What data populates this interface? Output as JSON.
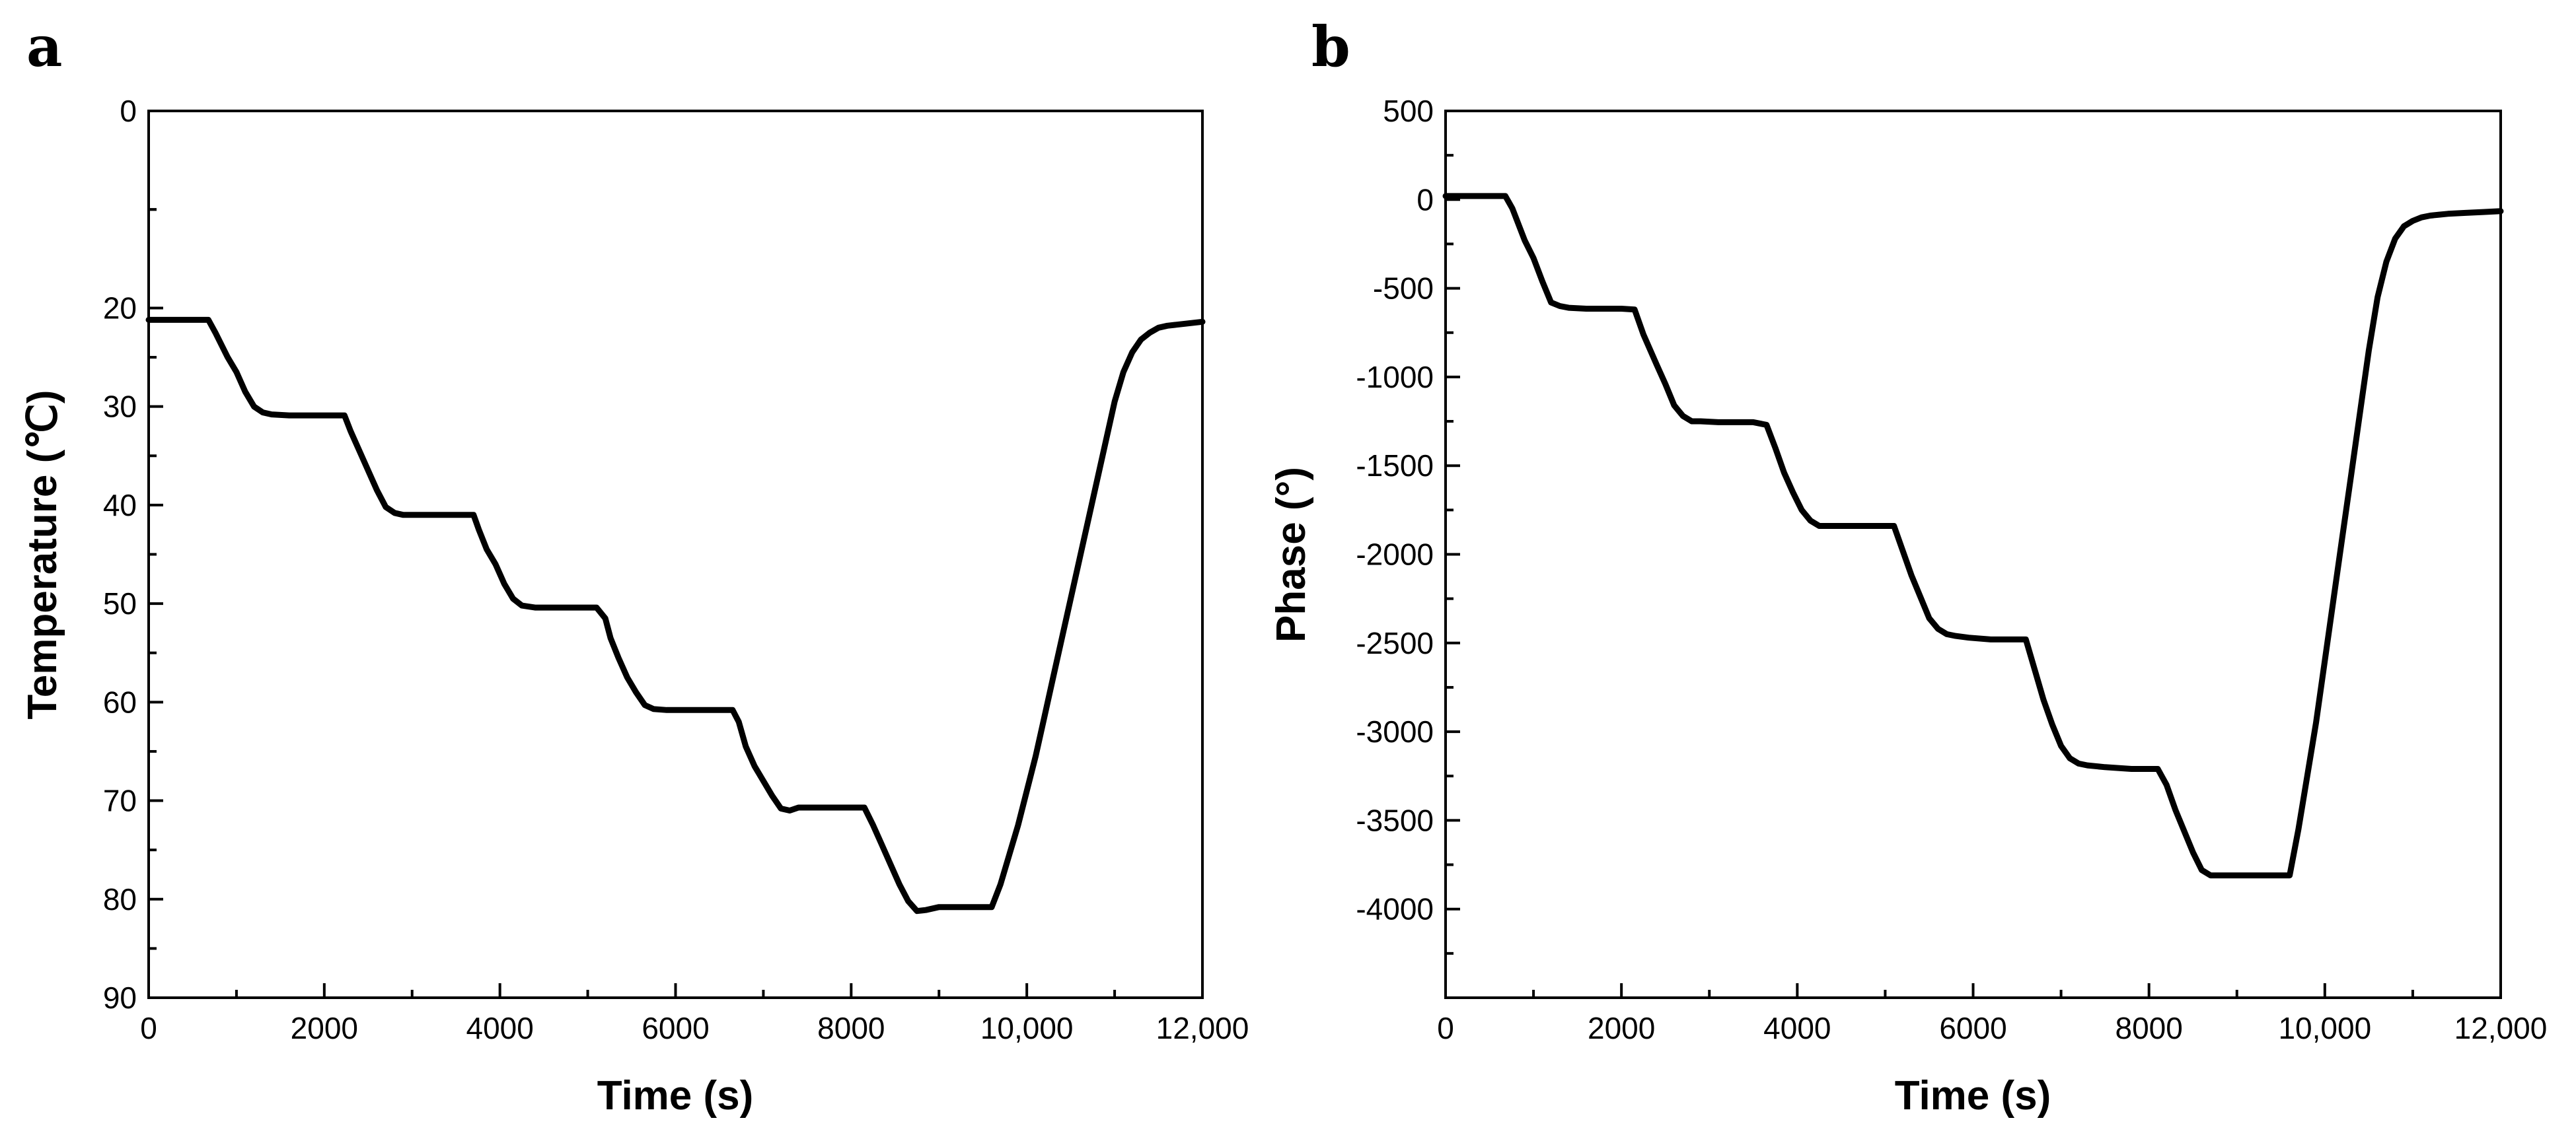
{
  "chart_data": [
    {
      "panel": "a",
      "type": "line",
      "xlabel": "Time (s)",
      "ylabel": "Temperature (℃)",
      "xlim": [
        0,
        12000
      ],
      "ylim": [
        0,
        90
      ],
      "y_inverted": true,
      "xticks": [
        0,
        2000,
        4000,
        6000,
        8000,
        10000,
        12000
      ],
      "xtick_labels": [
        "0",
        "2000",
        "4000",
        "6000",
        "8000",
        "10,000",
        "12,000"
      ],
      "yticks": [
        0,
        20,
        30,
        40,
        50,
        60,
        70,
        80,
        90
      ],
      "ytick_labels": [
        "0",
        "20",
        "30",
        "40",
        "50",
        "60",
        "70",
        "80",
        "90"
      ],
      "grid": false,
      "series": [
        {
          "x": [
            0,
            680,
            760,
            900,
            1000,
            1100,
            1200,
            1300,
            1400,
            1600,
            2000,
            2230,
            2300,
            2400,
            2500,
            2600,
            2700,
            2800,
            2900,
            3100,
            3500,
            3700,
            3760,
            3850,
            3950,
            4050,
            4150,
            4250,
            4400,
            4700,
            5100,
            5200,
            5260,
            5350,
            5450,
            5550,
            5650,
            5750,
            5900,
            6200,
            6650,
            6720,
            6800,
            6900,
            7000,
            7100,
            7200,
            7300,
            7400,
            7700,
            8150,
            8250,
            8350,
            8450,
            8550,
            8650,
            8750,
            8850,
            9000,
            9300,
            9600,
            9700,
            9800,
            9900,
            10000,
            10100,
            10200,
            10300,
            10400,
            10500,
            10600,
            10700,
            10800,
            10900,
            11000,
            11100,
            11200,
            11300,
            11400,
            11500,
            11600,
            11700,
            11800,
            12000
          ],
          "y": [
            21.2,
            21.2,
            22.5,
            25,
            26.5,
            28.5,
            30,
            30.6,
            30.8,
            30.9,
            30.9,
            30.9,
            32.5,
            34.5,
            36.5,
            38.5,
            40.2,
            40.8,
            41,
            41,
            41,
            41,
            42.5,
            44.5,
            46,
            48,
            49.5,
            50.2,
            50.4,
            50.4,
            50.4,
            51.5,
            53.5,
            55.5,
            57.5,
            59,
            60.3,
            60.7,
            60.8,
            60.8,
            60.8,
            62,
            64.5,
            66.5,
            68,
            69.5,
            70.8,
            71,
            70.7,
            70.7,
            70.7,
            72.5,
            74.5,
            76.5,
            78.5,
            80.2,
            81.2,
            81.1,
            80.8,
            80.8,
            80.8,
            78.5,
            75.5,
            72.5,
            69,
            65.5,
            61.5,
            57.5,
            53.5,
            49.5,
            45.5,
            41.5,
            37.5,
            33.5,
            29.5,
            26.5,
            24.5,
            23.2,
            22.5,
            22,
            21.8,
            21.7,
            21.6,
            21.4
          ]
        }
      ]
    },
    {
      "panel": "b",
      "type": "line",
      "xlabel": "Time (s)",
      "ylabel": "Phase (°)",
      "xlim": [
        0,
        12000
      ],
      "ylim": [
        -4500,
        500
      ],
      "xticks": [
        0,
        2000,
        4000,
        6000,
        8000,
        10000,
        12000
      ],
      "xtick_labels": [
        "0",
        "2000",
        "4000",
        "6000",
        "8000",
        "10,000",
        "12,000"
      ],
      "yticks": [
        500,
        0,
        -500,
        -1000,
        -1500,
        -2000,
        -2500,
        -3000,
        -3500,
        -4000
      ],
      "ytick_labels": [
        "500",
        "0",
        "-500",
        "-1000",
        "-1500",
        "-2000",
        "-2500",
        "-3000",
        "-3500",
        "-4000"
      ],
      "grid": false,
      "series": [
        {
          "x": [
            0,
            680,
            760,
            900,
            1000,
            1100,
            1200,
            1300,
            1400,
            1600,
            2000,
            2150,
            2250,
            2400,
            2500,
            2600,
            2700,
            2800,
            2900,
            3100,
            3500,
            3650,
            3750,
            3850,
            3950,
            4050,
            4150,
            4250,
            4400,
            4700,
            5100,
            5200,
            5300,
            5400,
            5500,
            5600,
            5700,
            5800,
            5950,
            6200,
            6600,
            6700,
            6800,
            6900,
            7000,
            7100,
            7200,
            7300,
            7500,
            7800,
            8100,
            8200,
            8300,
            8400,
            8500,
            8600,
            8700,
            8800,
            9000,
            9300,
            9600,
            9700,
            9800,
            9900,
            10000,
            10100,
            10200,
            10300,
            10400,
            10500,
            10600,
            10700,
            10800,
            10900,
            11000,
            11100,
            11200,
            11300,
            11400,
            11600,
            11800,
            12000
          ],
          "y": [
            20,
            20,
            -50,
            -230,
            -330,
            -460,
            -580,
            -600,
            -610,
            -615,
            -615,
            -620,
            -760,
            -930,
            -1040,
            -1160,
            -1220,
            -1250,
            -1250,
            -1255,
            -1255,
            -1270,
            -1400,
            -1540,
            -1650,
            -1750,
            -1810,
            -1840,
            -1840,
            -1840,
            -1840,
            -1980,
            -2120,
            -2240,
            -2360,
            -2420,
            -2450,
            -2460,
            -2470,
            -2480,
            -2480,
            -2650,
            -2820,
            -2960,
            -3080,
            -3150,
            -3180,
            -3190,
            -3200,
            -3210,
            -3210,
            -3300,
            -3440,
            -3560,
            -3680,
            -3780,
            -3810,
            -3810,
            -3810,
            -3810,
            -3810,
            -3550,
            -3250,
            -2950,
            -2600,
            -2250,
            -1900,
            -1550,
            -1200,
            -850,
            -550,
            -350,
            -220,
            -150,
            -120,
            -100,
            -90,
            -85,
            -80,
            -75,
            -70,
            -65
          ]
        }
      ]
    }
  ],
  "panels": {
    "a": {
      "letter": "a"
    },
    "b": {
      "letter": "b"
    }
  }
}
